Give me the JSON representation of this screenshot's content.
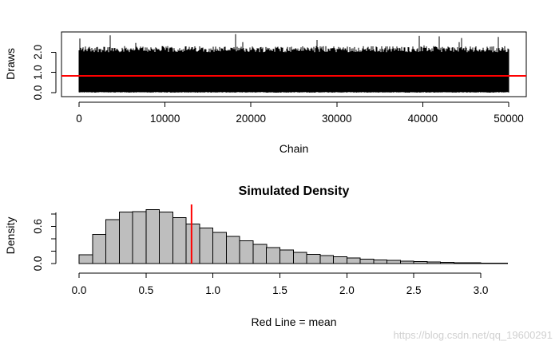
{
  "chart_data": [
    {
      "type": "line",
      "title": "",
      "xlabel": "Chain",
      "ylabel": "Draws",
      "xlim": [
        0,
        50000
      ],
      "ylim": [
        0.0,
        2.8
      ],
      "x_ticks": [
        0,
        10000,
        20000,
        30000,
        40000,
        50000
      ],
      "x_tick_labels": [
        "0",
        "10000",
        "20000",
        "30000",
        "40000",
        "50000"
      ],
      "y_ticks": [
        0.0,
        1.0,
        2.0
      ],
      "y_tick_labels": [
        "0.0",
        "1.0",
        "2.0"
      ],
      "n_draws": 50000,
      "trace_band": {
        "min": 0.0,
        "typical_max": 2.1,
        "peak_max": 2.95
      },
      "hline": {
        "y": 0.83,
        "color": "#ff0000",
        "label": "mean"
      },
      "grid": false,
      "box": true
    },
    {
      "type": "bar",
      "title": "Simulated Density",
      "xlabel": "Red Line = mean",
      "ylabel": "Density",
      "xlim": [
        0,
        3.2
      ],
      "ylim": [
        0,
        0.85
      ],
      "x_ticks": [
        0.0,
        0.5,
        1.0,
        1.5,
        2.0,
        2.5,
        3.0
      ],
      "x_tick_labels": [
        "0.0",
        "0.5",
        "1.0",
        "1.5",
        "2.0",
        "2.5",
        "3.0"
      ],
      "y_ticks": [
        0.0,
        0.6
      ],
      "y_tick_labels": [
        "0.0",
        "0.6"
      ],
      "bin_width": 0.1,
      "bin_starts": [
        0.0,
        0.1,
        0.2,
        0.3,
        0.4,
        0.5,
        0.6,
        0.7,
        0.8,
        0.9,
        1.0,
        1.1,
        1.2,
        1.3,
        1.4,
        1.5,
        1.6,
        1.7,
        1.8,
        1.9,
        2.0,
        2.1,
        2.2,
        2.3,
        2.4,
        2.5,
        2.6,
        2.7,
        2.8,
        2.9,
        3.0,
        3.1
      ],
      "values": [
        0.14,
        0.47,
        0.71,
        0.83,
        0.84,
        0.87,
        0.83,
        0.74,
        0.64,
        0.57,
        0.5,
        0.44,
        0.37,
        0.31,
        0.26,
        0.22,
        0.18,
        0.15,
        0.13,
        0.11,
        0.09,
        0.07,
        0.06,
        0.05,
        0.04,
        0.03,
        0.025,
        0.02,
        0.015,
        0.01,
        0.008,
        0.005
      ],
      "vline": {
        "x": 0.84,
        "color": "#ff0000",
        "label": "mean"
      },
      "grid": false
    }
  ],
  "watermark": "https://blog.csdn.net/qq_19600291"
}
